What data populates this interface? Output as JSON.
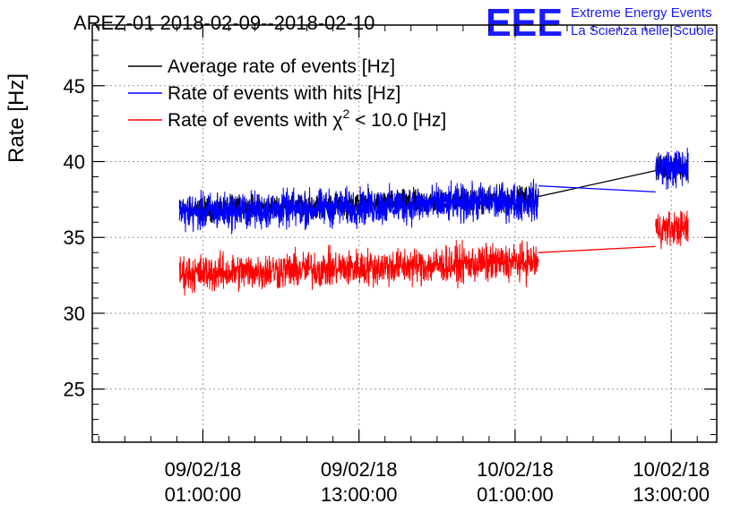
{
  "header": {
    "title": "AREZ-01 2018-02-09--2018-02-10",
    "logo_text": "EEE",
    "org_line1": "Extreme Energy Events",
    "org_line2": "La Scienza nelle Scuole"
  },
  "chart_data": {
    "type": "line",
    "title": "AREZ-01 2018-02-09--2018-02-10",
    "ylabel": "Rate [Hz]",
    "xlabel": "",
    "ylim": [
      21.5,
      49
    ],
    "yticks": [
      25,
      30,
      35,
      40,
      45
    ],
    "grid": true,
    "legend_position": "top-left",
    "xlim_hours": [
      -8.5,
      39.5
    ],
    "xticks": [
      {
        "hour": 0,
        "line1": "09/02/18",
        "line2": "01:00:00"
      },
      {
        "hour": 12,
        "line1": "09/02/18",
        "line2": "13:00:00"
      },
      {
        "hour": 24,
        "line1": "10/02/18",
        "line2": "01:00:00"
      },
      {
        "hour": 36,
        "line1": "10/02/18",
        "line2": "13:00:00"
      }
    ],
    "series": [
      {
        "name": "Average rate of events [Hz]",
        "color": "#000000",
        "segments": [
          {
            "start_hour": -1.8,
            "end_hour": 25.8,
            "mean": 37.2,
            "trend": 0.8,
            "noise": 0.5
          },
          {
            "start_hour": 34.8,
            "end_hour": 37.3,
            "mean": 39.6,
            "trend": 0.0,
            "noise": 0.5
          }
        ],
        "gap_from": [
          25.8,
          37.7
        ],
        "gap_to": [
          34.8,
          39.4
        ]
      },
      {
        "name": "Rate of events with hits [Hz]",
        "color": "#0000ff",
        "segments": [
          {
            "start_hour": -1.8,
            "end_hour": 25.8,
            "mean": 37.0,
            "trend": 0.8,
            "noise": 0.75
          },
          {
            "start_hour": 34.8,
            "end_hour": 37.3,
            "mean": 39.6,
            "trend": 0.0,
            "noise": 0.8
          }
        ],
        "gap_from": [
          25.8,
          38.4
        ],
        "gap_to": [
          34.8,
          38.0
        ]
      },
      {
        "name": "Rate of events with χ² < 10.0 [Hz]",
        "color": "#ff0000",
        "segments": [
          {
            "start_hour": -1.8,
            "end_hour": 25.8,
            "mean": 33.0,
            "trend": 0.8,
            "noise": 0.75
          },
          {
            "start_hour": 34.8,
            "end_hour": 37.3,
            "mean": 35.6,
            "trend": 0.0,
            "noise": 0.7
          }
        ],
        "gap_from": [
          25.8,
          34.0
        ],
        "gap_to": [
          34.8,
          34.4
        ]
      }
    ],
    "legend": [
      {
        "label_main": "Rate of events with χ",
        "label_sup": "2",
        "label_tail": " < 10.0 [Hz]"
      }
    ]
  }
}
